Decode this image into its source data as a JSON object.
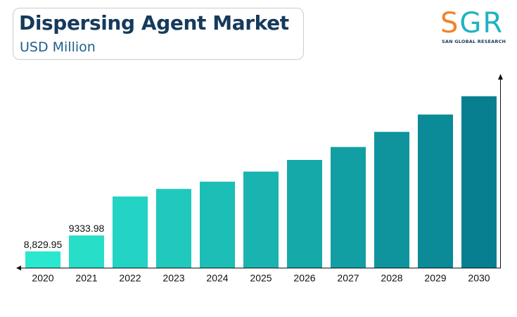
{
  "header": {
    "title": "Dispersing Agent Market",
    "subtitle": "USD Million"
  },
  "logo": {
    "letter_s": "S",
    "letters_gr": "GR",
    "tagline": "SAN GLOBAL RESEARCH"
  },
  "colors": {
    "title": "#163a5c",
    "subtitle": "#1f5f8a",
    "bar_start": "#2ae8cf",
    "bar_end": "#087f91",
    "axis": "#111111"
  },
  "chart_data": {
    "type": "bar",
    "categories": [
      "2020",
      "2021",
      "2022",
      "2023",
      "2024",
      "2025",
      "2026",
      "2027",
      "2028",
      "2029",
      "2030"
    ],
    "values": [
      8829.95,
      9333.98,
      10570,
      10810,
      11040,
      11360,
      11730,
      12140,
      12620,
      13170,
      13750
    ],
    "data_labels": [
      "8,829.95",
      "9333.98",
      "",
      "",
      "",
      "",
      "",
      "",
      "",
      "",
      ""
    ],
    "ylim": [
      8300,
      14300
    ],
    "xlabel": "",
    "ylabel": "",
    "grid": false,
    "legend": "none"
  }
}
